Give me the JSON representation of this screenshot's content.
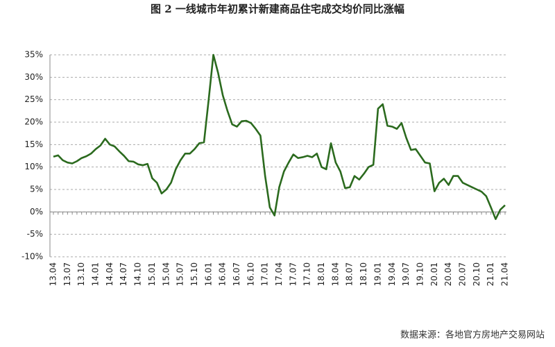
{
  "chart_data": {
    "type": "line",
    "title": "图 2 一线城市年初累计新建商品住宅成交均价同比涨幅",
    "source": "数据来源：各地官方房地产交易网站",
    "categories": [
      "13.04",
      null,
      null,
      "13.07",
      null,
      null,
      "13.10",
      null,
      null,
      "14.01",
      null,
      null,
      "14.04",
      null,
      null,
      "14.07",
      null,
      null,
      "14.10",
      null,
      null,
      "15.01",
      null,
      null,
      "15.04",
      null,
      null,
      "15.07",
      null,
      null,
      "15.10",
      null,
      null,
      "16.01",
      null,
      null,
      "16.04",
      null,
      null,
      "16.07",
      null,
      null,
      "16.10",
      null,
      null,
      "17.01",
      null,
      null,
      "17.04",
      null,
      null,
      "17.07",
      null,
      null,
      "17.10",
      null,
      null,
      "18.01",
      null,
      null,
      "18.04",
      null,
      null,
      "18.07",
      null,
      null,
      "18.10",
      null,
      null,
      "19.01",
      null,
      null,
      "19.04",
      null,
      null,
      "19.07",
      null,
      null,
      "19.10",
      null,
      null,
      "20.01",
      null,
      null,
      "20.04",
      null,
      null,
      "20.07",
      null,
      null,
      "20.10",
      null,
      null,
      "21.01",
      null,
      null,
      "21.04"
    ],
    "values": [
      12.3,
      12.6,
      11.5,
      11,
      10.8,
      11.3,
      12,
      12.4,
      13,
      14,
      14.8,
      16.3,
      15,
      14.6,
      13.5,
      12.5,
      11.3,
      11.2,
      10.6,
      10.4,
      10.7,
      7.5,
      6.5,
      4.1,
      5,
      6.5,
      9.5,
      11.5,
      13,
      13,
      14,
      15.3,
      15.5,
      25,
      35,
      31,
      26,
      22.5,
      19.5,
      19,
      20.2,
      20.3,
      19.8,
      18.5,
      17,
      8,
      1,
      -0.8,
      5.5,
      9,
      11,
      12.8,
      12,
      12.2,
      12.5,
      12.2,
      13,
      10,
      9.5,
      15.3,
      11,
      9,
      5.3,
      5.5,
      8,
      7.2,
      8.5,
      10,
      10.5,
      23,
      24,
      19.2,
      19,
      18.5,
      19.8,
      16.5,
      13.8,
      14,
      12.5,
      11,
      10.8,
      4.6,
      6.5,
      7.4,
      6,
      8,
      8,
      6.5,
      6,
      5.5,
      5,
      4.5,
      3.5,
      1,
      -1.6,
      0.5,
      1.5
    ],
    "color": "#2b6a1e",
    "ylim": [
      -10,
      35
    ],
    "yticks": [
      {
        "value": -10,
        "label": "-10%"
      },
      {
        "value": -5,
        "label": "-5%"
      },
      {
        "value": 0,
        "label": "0%"
      },
      {
        "value": 5,
        "label": "5%"
      },
      {
        "value": 10,
        "label": "10%"
      },
      {
        "value": 15,
        "label": "15%"
      },
      {
        "value": 20,
        "label": "20%"
      },
      {
        "value": 25,
        "label": "25%"
      },
      {
        "value": 30,
        "label": "30%"
      },
      {
        "value": 35,
        "label": "35%"
      }
    ],
    "grid": true
  }
}
